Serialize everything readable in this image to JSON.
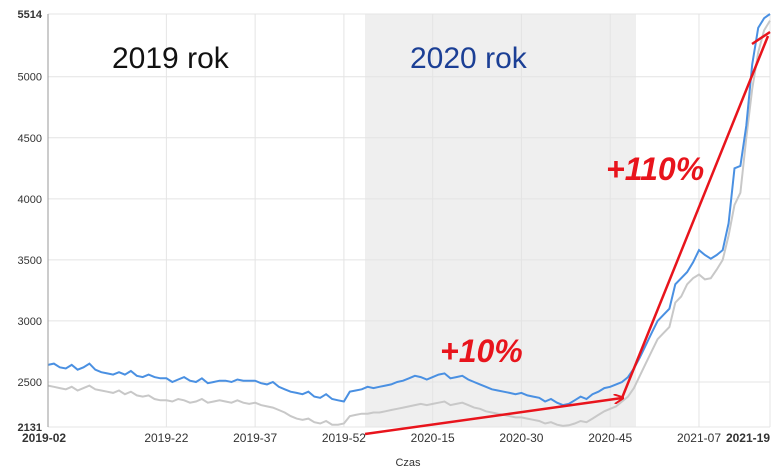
{
  "chart_data": {
    "type": "line",
    "xlabel": "Czas",
    "annotations": [
      "2019 rok",
      "2020 rok",
      "+10%",
      "+110%"
    ],
    "categories": [
      "2019-02",
      null,
      null,
      null,
      null,
      null,
      null,
      null,
      null,
      null,
      null,
      null,
      null,
      null,
      null,
      null,
      null,
      null,
      null,
      null,
      "2019-22",
      null,
      null,
      null,
      null,
      null,
      null,
      null,
      null,
      null,
      null,
      null,
      null,
      null,
      null,
      "2019-37",
      null,
      null,
      null,
      null,
      null,
      null,
      null,
      null,
      null,
      null,
      null,
      null,
      null,
      null,
      "2019-52",
      null,
      null,
      null,
      null,
      null,
      null,
      null,
      null,
      null,
      null,
      null,
      null,
      null,
      null,
      "2020-15",
      null,
      null,
      null,
      null,
      null,
      null,
      null,
      null,
      null,
      null,
      null,
      null,
      null,
      null,
      "2020-30",
      null,
      null,
      null,
      null,
      null,
      null,
      null,
      null,
      null,
      null,
      null,
      null,
      null,
      null,
      "2020-45",
      null,
      null,
      null,
      null,
      null,
      null,
      null,
      null,
      null,
      null,
      null,
      null,
      null,
      null,
      "2021-07",
      null,
      null,
      null,
      null,
      null,
      null,
      null,
      null,
      null,
      null,
      null,
      "2021-19"
    ],
    "series": [
      {
        "color": "#4a90e2",
        "values": [
          2640,
          2650,
          2620,
          2610,
          2640,
          2600,
          2620,
          2650,
          2600,
          2580,
          2570,
          2560,
          2580,
          2560,
          2590,
          2550,
          2540,
          2560,
          2540,
          2530,
          2530,
          2500,
          2520,
          2540,
          2510,
          2500,
          2530,
          2490,
          2500,
          2510,
          2510,
          2500,
          2520,
          2510,
          2510,
          2510,
          2490,
          2480,
          2500,
          2460,
          2440,
          2420,
          2410,
          2400,
          2420,
          2380,
          2370,
          2400,
          2360,
          2350,
          2340,
          2420,
          2430,
          2440,
          2460,
          2450,
          2460,
          2470,
          2480,
          2500,
          2510,
          2530,
          2550,
          2540,
          2520,
          2540,
          2560,
          2570,
          2530,
          2540,
          2550,
          2520,
          2500,
          2480,
          2460,
          2440,
          2430,
          2420,
          2410,
          2400,
          2410,
          2390,
          2380,
          2370,
          2340,
          2360,
          2330,
          2310,
          2320,
          2350,
          2380,
          2360,
          2400,
          2420,
          2450,
          2460,
          2480,
          2500,
          2540,
          2610,
          2700,
          2800,
          2900,
          3000,
          3050,
          3100,
          3300,
          3350,
          3400,
          3480,
          3580,
          3540,
          3510,
          3540,
          3580,
          3800,
          4250,
          4270,
          4600,
          5100,
          5400,
          5480,
          5514
        ]
      },
      {
        "color": "#c8c8c8",
        "values": [
          2470,
          2460,
          2450,
          2440,
          2460,
          2430,
          2450,
          2470,
          2440,
          2430,
          2420,
          2410,
          2430,
          2400,
          2420,
          2390,
          2380,
          2390,
          2360,
          2350,
          2350,
          2340,
          2360,
          2350,
          2330,
          2340,
          2360,
          2330,
          2340,
          2350,
          2340,
          2330,
          2350,
          2330,
          2320,
          2330,
          2310,
          2300,
          2290,
          2270,
          2250,
          2220,
          2200,
          2190,
          2200,
          2170,
          2160,
          2180,
          2150,
          2150,
          2160,
          2220,
          2230,
          2240,
          2240,
          2250,
          2250,
          2260,
          2270,
          2280,
          2290,
          2300,
          2310,
          2320,
          2310,
          2320,
          2330,
          2340,
          2310,
          2320,
          2330,
          2310,
          2290,
          2280,
          2260,
          2250,
          2240,
          2230,
          2220,
          2210,
          2210,
          2200,
          2190,
          2180,
          2160,
          2170,
          2150,
          2140,
          2145,
          2160,
          2180,
          2170,
          2200,
          2230,
          2260,
          2280,
          2300,
          2340,
          2380,
          2450,
          2550,
          2650,
          2750,
          2850,
          2900,
          2950,
          3150,
          3200,
          3300,
          3350,
          3380,
          3340,
          3350,
          3420,
          3500,
          3700,
          3950,
          4050,
          4500,
          4900,
          5200,
          5380,
          5460
        ]
      }
    ],
    "ylim": [
      2131,
      5514
    ],
    "yticks": [
      2131,
      2500,
      3000,
      3500,
      4000,
      4500,
      5000,
      5514
    ],
    "grid": true
  }
}
